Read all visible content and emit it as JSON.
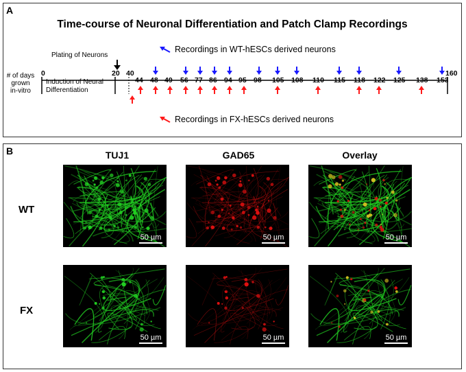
{
  "panel_a": {
    "letter": "A",
    "title": "Time-course of Neuronal Differentiation and Patch Clamp Recordings",
    "legend_wt": "Recordings in WT-hESCs derived neurons",
    "legend_fx": "Recordings in FX-hESCs derived neurons",
    "plating_label": "Plating of Neurons",
    "days_label_line1": "# of days",
    "days_label_line2": "grown",
    "days_label_line3": "in-vitro",
    "induction_line1": "Induction of Neural",
    "induction_line2": "Differentiation",
    "tick_start": "0",
    "tick_plating": "20",
    "tick_40": "40",
    "tick_end": "160",
    "timepoints": [
      "44",
      "48",
      "49",
      "56",
      "77",
      "86",
      "94",
      "95",
      "98",
      "105",
      "108",
      "110",
      "115",
      "118",
      "122",
      "125",
      "138",
      "153"
    ],
    "wt_recording_days": [
      "48",
      "56",
      "77",
      "86",
      "94",
      "98",
      "105",
      "108",
      "115",
      "118",
      "125",
      "153"
    ],
    "fx_recording_days": [
      "40",
      "44",
      "48",
      "49",
      "56",
      "77",
      "86",
      "94",
      "95",
      "105",
      "110",
      "118",
      "122",
      "138"
    ],
    "colors": {
      "wt_arrow": "#1a1aff",
      "fx_arrow": "#ff1a1a",
      "plating_arrow": "#000000"
    }
  },
  "panel_b": {
    "letter": "B",
    "columns": [
      "TUJ1",
      "GAD65",
      "Overlay"
    ],
    "rows": [
      "WT",
      "FX"
    ],
    "scale_bar_label": "50 µm",
    "colors": {
      "tuj1": "#22d022",
      "gad65": "#e01010",
      "overlay_mix": "#d0c020"
    }
  }
}
